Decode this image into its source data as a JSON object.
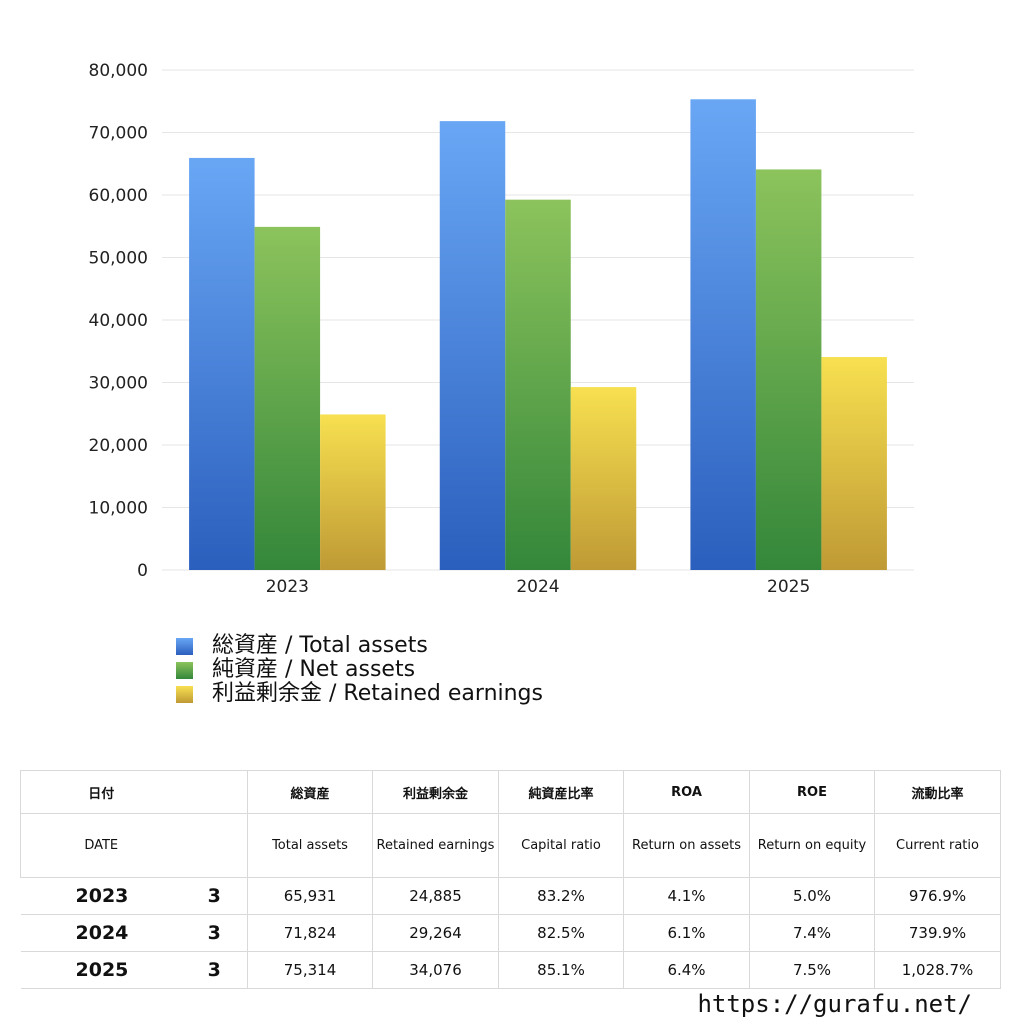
{
  "chart_data": {
    "type": "bar",
    "categories": [
      "2023",
      "2024",
      "2025"
    ],
    "series": [
      {
        "name": "総資産 / Total assets",
        "values": [
          65931,
          71824,
          75314
        ],
        "color_top": "#69a7f5",
        "color_bottom": "#2b5fbd"
      },
      {
        "name": "純資産 / Net assets",
        "values": [
          54900,
          59253,
          64090
        ],
        "color_top": "#8cc35c",
        "color_bottom": "#34873a"
      },
      {
        "name": "利益剰余金 / Retained earnings",
        "values": [
          24885,
          29264,
          34076
        ],
        "color_top": "#f7e050",
        "color_bottom": "#bf9a35"
      }
    ],
    "ylim": [
      0,
      80000
    ],
    "yticks": [
      0,
      10000,
      20000,
      30000,
      40000,
      50000,
      60000,
      70000,
      80000
    ],
    "ytick_labels": [
      "0",
      "10,000",
      "20,000",
      "30,000",
      "40,000",
      "50,000",
      "60,000",
      "70,000",
      "80,000"
    ],
    "grid": true,
    "legend_position": "bottom-left"
  },
  "table": {
    "headers_jp": [
      "日付",
      "",
      "総資産",
      "利益剰余金",
      "純資産比率",
      "ROA",
      "ROE",
      "流動比率"
    ],
    "headers_en": [
      "DATE",
      "",
      "Total assets",
      "Retained earnings",
      "Capital ratio",
      "Return on assets",
      "Return on equity",
      "Current ratio"
    ],
    "rows": [
      {
        "year": "2023",
        "month": "3",
        "total_assets": "65,931",
        "retained": "24,885",
        "capital_ratio": "83.2%",
        "roa": "4.1%",
        "roe": "5.0%",
        "current_ratio": "976.9%"
      },
      {
        "year": "2024",
        "month": "3",
        "total_assets": "71,824",
        "retained": "29,264",
        "capital_ratio": "82.5%",
        "roa": "6.1%",
        "roe": "7.4%",
        "current_ratio": "739.9%"
      },
      {
        "year": "2025",
        "month": "3",
        "total_assets": "75,314",
        "retained": "34,076",
        "capital_ratio": "85.1%",
        "roa": "6.4%",
        "roe": "7.5%",
        "current_ratio": "1,028.7%"
      }
    ]
  },
  "site_url": "https://gurafu.net/"
}
